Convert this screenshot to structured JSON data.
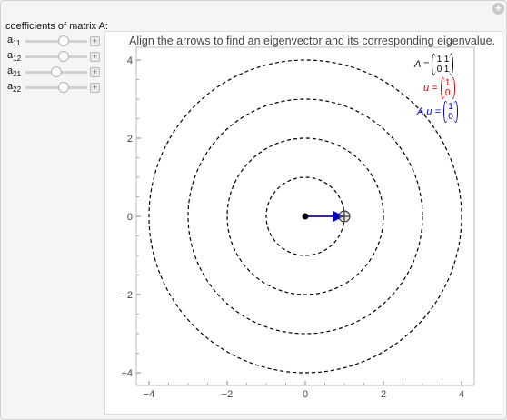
{
  "controls": {
    "title": "coefficients of matrix A:",
    "sliders": [
      {
        "label": "a",
        "sub": "11",
        "value": 1
      },
      {
        "label": "a",
        "sub": "12",
        "value": 1
      },
      {
        "label": "a",
        "sub": "21",
        "value": 0
      },
      {
        "label": "a",
        "sub": "22",
        "value": 1
      }
    ],
    "plus_symbol": "+"
  },
  "plot": {
    "title": "Align the arrows to find an eigenvector and its corresponding eigenvalue.",
    "x_ticks": [
      "−4",
      "−2",
      "0",
      "2",
      "4"
    ],
    "y_ticks": [
      "4",
      "2",
      "0",
      "−2",
      "−4"
    ],
    "circle_radii": [
      1,
      2,
      3,
      4
    ],
    "u_vector": [
      1,
      0
    ],
    "Au_vector": [
      1,
      0
    ],
    "legend": {
      "A_label": "A =",
      "A_matrix": [
        [
          "1",
          "1"
        ],
        [
          "0",
          "1"
        ]
      ],
      "u_label": "u =",
      "u_vec": [
        "1",
        "0"
      ],
      "Au_label": "A.u =",
      "Au_vec": [
        "1",
        "0"
      ]
    },
    "colors": {
      "u": "#e00000",
      "Au": "#0000d0",
      "circle": "#000000"
    }
  }
}
